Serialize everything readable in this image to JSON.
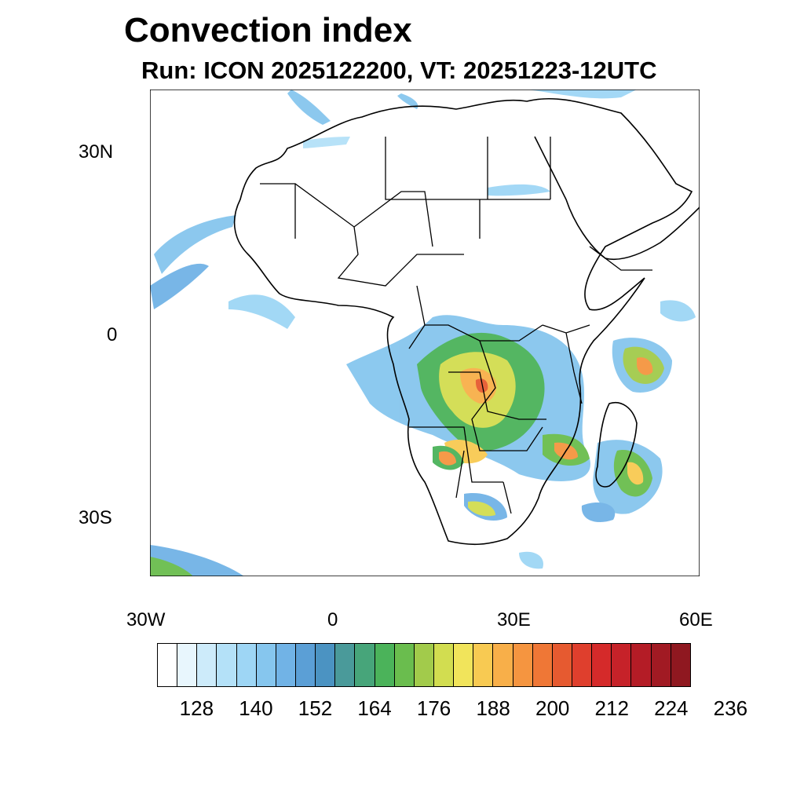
{
  "title": "Convection index",
  "subtitle": "Run: ICON 2025122200,  VT: 20251223-12UTC",
  "map": {
    "lat_labels": [
      "30N",
      "0",
      "30S"
    ],
    "lon_labels": [
      "30W",
      "0",
      "30E",
      "60E"
    ]
  },
  "colorbar": {
    "colors": [
      "#ffffff",
      "#e8f6fd",
      "#cdebfa",
      "#b4e1f8",
      "#9ed6f5",
      "#86c6ee",
      "#71b3e6",
      "#5b9fd6",
      "#4b93c2",
      "#4a9a9a",
      "#47a57a",
      "#4bb35a",
      "#6abd4e",
      "#a2cb4b",
      "#d2dd50",
      "#f1e45b",
      "#f8ca52",
      "#f8af49",
      "#f59540",
      "#ef7736",
      "#e65a30",
      "#df3f2d",
      "#d52a2a",
      "#c62229",
      "#b41c26",
      "#a11a23",
      "#8f1820"
    ],
    "labels": [
      "128",
      "140",
      "152",
      "164",
      "176",
      "188",
      "200",
      "212",
      "224",
      "236"
    ]
  }
}
